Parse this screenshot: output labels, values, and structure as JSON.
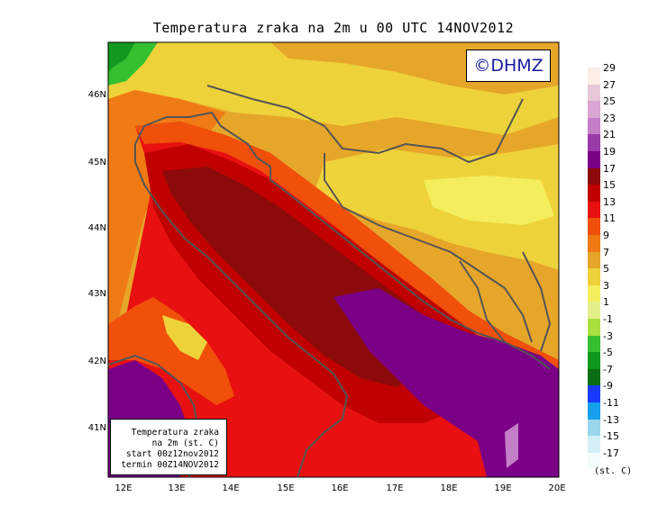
{
  "title": "Temperatura zraka na 2m u 00 UTC 14NOV2012",
  "copyright": "©DHMZ",
  "y_ticks": [
    "46N",
    "45N",
    "44N",
    "43N",
    "42N",
    "41N"
  ],
  "x_ticks": [
    "12E",
    "13E",
    "14E",
    "15E",
    "16E",
    "17E",
    "18E",
    "19E",
    "20E"
  ],
  "info": {
    "line1": "Temperatura zraka",
    "line2": "na 2m (st. C)",
    "line3": "start 00z12nov2012",
    "line4": "termin 00Z14NOV2012"
  },
  "legend": {
    "labels": [
      "29",
      "27",
      "25",
      "23",
      "21",
      "19",
      "17",
      "15",
      "13",
      "11",
      "9",
      "7",
      "5",
      "3",
      "1",
      "-1",
      "-3",
      "-5",
      "-7",
      "-9",
      "-11",
      "-13",
      "-15",
      "-17"
    ],
    "colors": [
      "#fbeee6",
      "#e8c8d8",
      "#d8a6d0",
      "#c47ec8",
      "#9a3aa8",
      "#7a0086",
      "#8c0a0a",
      "#c00000",
      "#e81010",
      "#f0500a",
      "#f07a14",
      "#e6a62a",
      "#eed23a",
      "#f4ee5c",
      "#e4f08c",
      "#a8e040",
      "#34c030",
      "#0f9a1e",
      "#0a6e14",
      "#1a3aff",
      "#16a0ee",
      "#9ad6ec",
      "#d4eef6",
      "#f4fcfc"
    ],
    "unit": "(st. C)"
  }
}
